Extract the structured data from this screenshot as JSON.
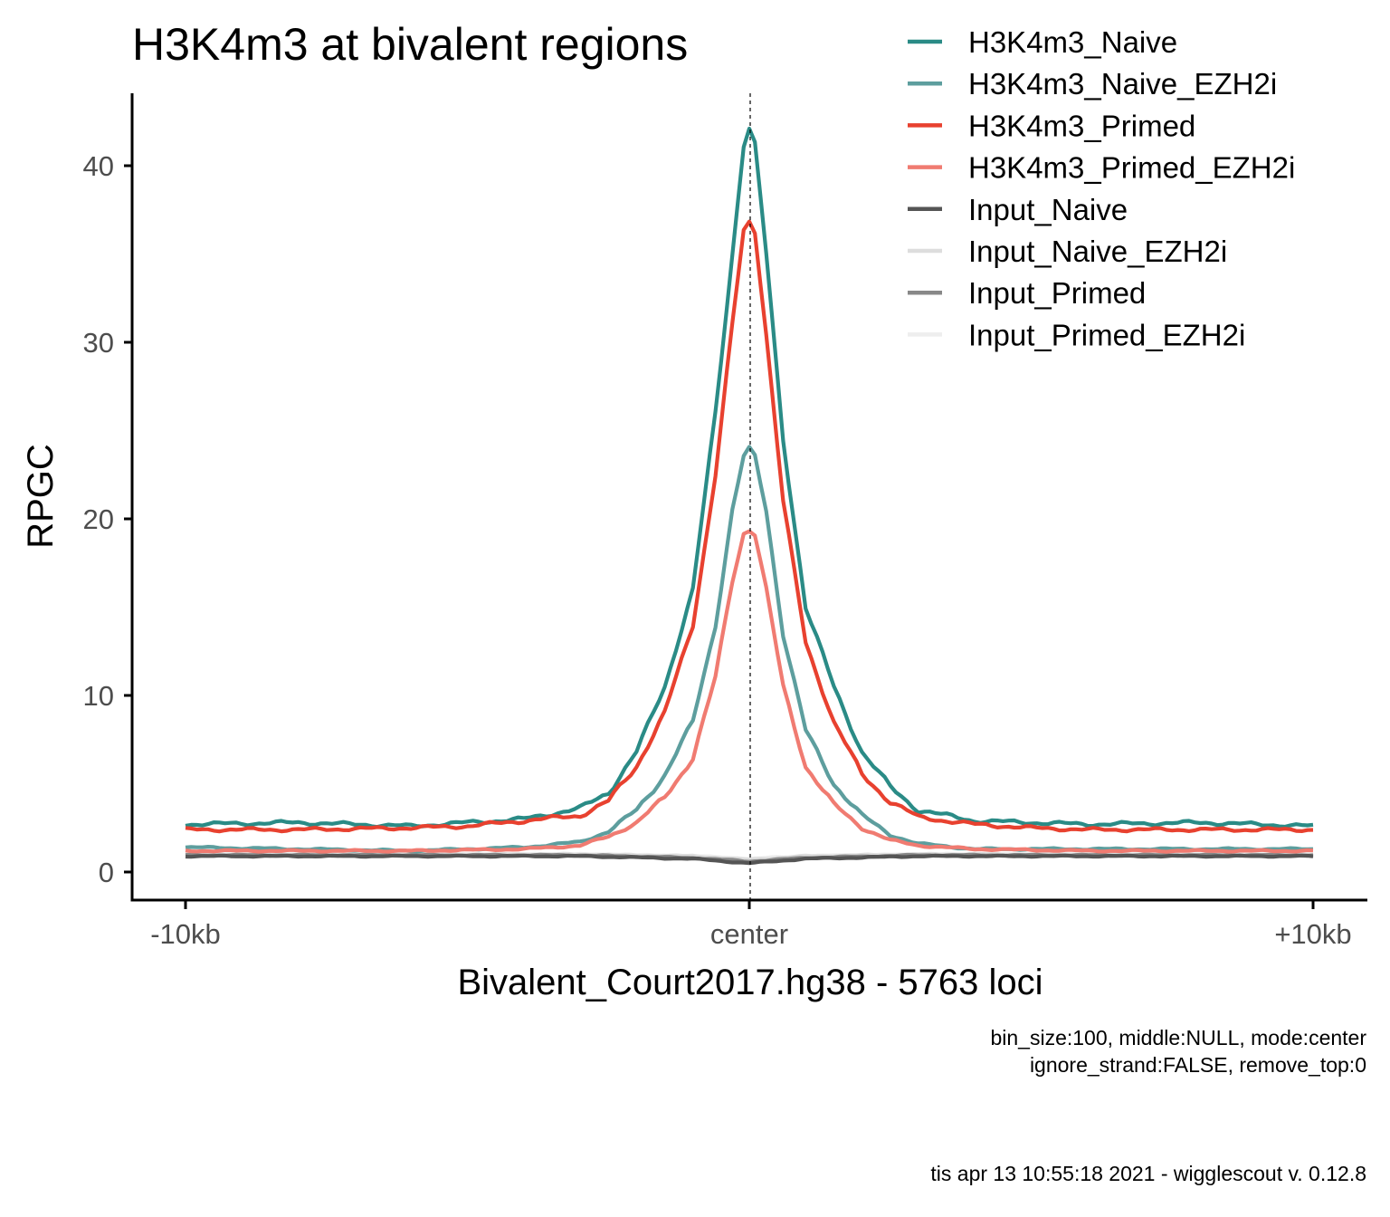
{
  "chart_data": {
    "type": "line",
    "title": "H3K4m3 at bivalent regions",
    "xlabel": "Bivalent_Court2017.hg38 - 5763 loci",
    "ylabel": "RPGC",
    "xlim": [
      -10000,
      10000
    ],
    "ylim": [
      0,
      42
    ],
    "x_ticks": [
      {
        "value": -10000,
        "label": "-10kb"
      },
      {
        "value": 0,
        "label": "center"
      },
      {
        "value": 10000,
        "label": "+10kb"
      }
    ],
    "y_ticks": [
      {
        "value": 0,
        "label": "0"
      },
      {
        "value": 10,
        "label": "10"
      },
      {
        "value": 20,
        "label": "20"
      },
      {
        "value": 30,
        "label": "30"
      },
      {
        "value": 40,
        "label": "40"
      }
    ],
    "center_line": {
      "x": 0,
      "style": "dashed"
    },
    "grid": false,
    "legend_position": "top-right",
    "captions": [
      "bin_size:100, middle:NULL, mode:center",
      "ignore_strand:FALSE, remove_top:0"
    ],
    "footer": "tis apr 13 10:55:18 2021 - wigglescout v. 0.12.8",
    "series": [
      {
        "name": "H3K4m3_Naive",
        "color": "#2a8b86",
        "points": [
          [
            -10000,
            2.7
          ],
          [
            -8000,
            2.8
          ],
          [
            -6000,
            2.6
          ],
          [
            -5000,
            2.8
          ],
          [
            -4000,
            3.0
          ],
          [
            -3000,
            3.6
          ],
          [
            -2500,
            4.5
          ],
          [
            -2000,
            6.8
          ],
          [
            -1500,
            10.5
          ],
          [
            -1000,
            16
          ],
          [
            -600,
            26
          ],
          [
            -300,
            35
          ],
          [
            -100,
            41.2
          ],
          [
            0,
            42.1
          ],
          [
            100,
            41.2
          ],
          [
            300,
            35
          ],
          [
            600,
            24.5
          ],
          [
            1000,
            15
          ],
          [
            1500,
            10.5
          ],
          [
            2000,
            6.8
          ],
          [
            2500,
            4.8
          ],
          [
            3000,
            3.5
          ],
          [
            4000,
            2.9
          ],
          [
            5000,
            2.8
          ],
          [
            6000,
            2.7
          ],
          [
            8000,
            2.8
          ],
          [
            10000,
            2.6
          ]
        ]
      },
      {
        "name": "H3K4m3_Naive_EZH2i",
        "color": "#5d9e9e",
        "points": [
          [
            -10000,
            1.4
          ],
          [
            -8000,
            1.3
          ],
          [
            -6000,
            1.2
          ],
          [
            -4000,
            1.4
          ],
          [
            -3000,
            1.7
          ],
          [
            -2500,
            2.3
          ],
          [
            -2000,
            3.5
          ],
          [
            -1500,
            5.5
          ],
          [
            -1000,
            8.5
          ],
          [
            -600,
            14
          ],
          [
            -300,
            20.5
          ],
          [
            -100,
            23.5
          ],
          [
            0,
            23.9
          ],
          [
            100,
            23.5
          ],
          [
            300,
            20.5
          ],
          [
            600,
            13.5
          ],
          [
            1000,
            8.0
          ],
          [
            1500,
            5.0
          ],
          [
            2000,
            3.2
          ],
          [
            2500,
            2.1
          ],
          [
            3000,
            1.6
          ],
          [
            4000,
            1.3
          ],
          [
            6000,
            1.3
          ],
          [
            8000,
            1.3
          ],
          [
            10000,
            1.3
          ]
        ]
      },
      {
        "name": "H3K4m3_Primed",
        "color": "#e8412f",
        "points": [
          [
            -10000,
            2.4
          ],
          [
            -8000,
            2.4
          ],
          [
            -6000,
            2.5
          ],
          [
            -5000,
            2.6
          ],
          [
            -4000,
            2.9
          ],
          [
            -3000,
            3.2
          ],
          [
            -2500,
            4.0
          ],
          [
            -2000,
            6.0
          ],
          [
            -1500,
            9.0
          ],
          [
            -1000,
            14
          ],
          [
            -600,
            22.5
          ],
          [
            -300,
            31
          ],
          [
            -100,
            36.3
          ],
          [
            0,
            36.8
          ],
          [
            100,
            36.3
          ],
          [
            300,
            30.5
          ],
          [
            600,
            21
          ],
          [
            1000,
            13
          ],
          [
            1500,
            8.5
          ],
          [
            2000,
            5.5
          ],
          [
            2500,
            4.0
          ],
          [
            3000,
            3.1
          ],
          [
            4000,
            2.7
          ],
          [
            5000,
            2.5
          ],
          [
            6000,
            2.4
          ],
          [
            8000,
            2.4
          ],
          [
            10000,
            2.4
          ]
        ]
      },
      {
        "name": "H3K4m3_Primed_EZH2i",
        "color": "#f07b71",
        "points": [
          [
            -10000,
            1.2
          ],
          [
            -8000,
            1.2
          ],
          [
            -6000,
            1.2
          ],
          [
            -4000,
            1.3
          ],
          [
            -3000,
            1.5
          ],
          [
            -2500,
            2.0
          ],
          [
            -2000,
            2.8
          ],
          [
            -1500,
            4.2
          ],
          [
            -1000,
            6.5
          ],
          [
            -600,
            11
          ],
          [
            -300,
            16.5
          ],
          [
            -100,
            19.2
          ],
          [
            0,
            19.4
          ],
          [
            100,
            19.2
          ],
          [
            300,
            16
          ],
          [
            600,
            10.5
          ],
          [
            1000,
            6.0
          ],
          [
            1500,
            3.8
          ],
          [
            2000,
            2.5
          ],
          [
            2500,
            1.8
          ],
          [
            3000,
            1.5
          ],
          [
            4000,
            1.3
          ],
          [
            6000,
            1.2
          ],
          [
            8000,
            1.2
          ],
          [
            10000,
            1.2
          ]
        ]
      },
      {
        "name": "Input_Naive",
        "color": "#555555",
        "points": [
          [
            -10000,
            0.9
          ],
          [
            -6000,
            0.9
          ],
          [
            -3000,
            0.9
          ],
          [
            -1000,
            0.75
          ],
          [
            0,
            0.5
          ],
          [
            1000,
            0.75
          ],
          [
            3000,
            0.9
          ],
          [
            6000,
            0.9
          ],
          [
            10000,
            0.9
          ]
        ]
      },
      {
        "name": "Input_Naive_EZH2i",
        "color": "#dddddd",
        "points": [
          [
            -10000,
            1.0
          ],
          [
            -6000,
            1.0
          ],
          [
            -3000,
            1.0
          ],
          [
            -1000,
            0.9
          ],
          [
            0,
            0.7
          ],
          [
            1000,
            0.9
          ],
          [
            3000,
            1.0
          ],
          [
            6000,
            1.0
          ],
          [
            10000,
            1.0
          ]
        ]
      },
      {
        "name": "Input_Primed",
        "color": "#888888",
        "points": [
          [
            -10000,
            0.95
          ],
          [
            -6000,
            0.95
          ],
          [
            -3000,
            0.95
          ],
          [
            -1000,
            0.8
          ],
          [
            0,
            0.6
          ],
          [
            1000,
            0.8
          ],
          [
            3000,
            0.95
          ],
          [
            6000,
            0.95
          ],
          [
            10000,
            0.95
          ]
        ]
      },
      {
        "name": "Input_Primed_EZH2i",
        "color": "#eeeeee",
        "points": [
          [
            -10000,
            1.0
          ],
          [
            -6000,
            1.0
          ],
          [
            -3000,
            1.0
          ],
          [
            -1000,
            0.9
          ],
          [
            0,
            0.75
          ],
          [
            1000,
            0.9
          ],
          [
            3000,
            1.0
          ],
          [
            6000,
            1.0
          ],
          [
            10000,
            1.0
          ]
        ]
      }
    ]
  }
}
